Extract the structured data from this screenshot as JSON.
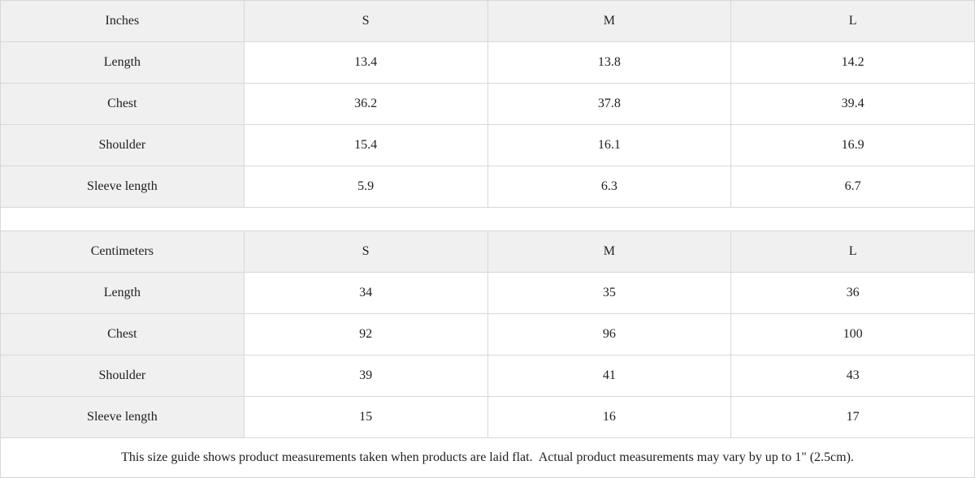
{
  "colors": {
    "header_bg": "#f0f0f0",
    "label_bg": "#f0f0f0",
    "cell_bg": "#ffffff",
    "border": "#d8d8d8",
    "text": "#1f1f1f"
  },
  "size_guide": {
    "tables": [
      {
        "unit_label": "Inches",
        "size_headers": [
          "S",
          "M",
          "L"
        ],
        "rows": [
          {
            "label": "Length",
            "values": [
              "13.4",
              "13.8",
              "14.2"
            ]
          },
          {
            "label": "Chest",
            "values": [
              "36.2",
              "37.8",
              "39.4"
            ]
          },
          {
            "label": "Shoulder",
            "values": [
              "15.4",
              "16.1",
              "16.9"
            ]
          },
          {
            "label": "Sleeve length",
            "values": [
              "5.9",
              "6.3",
              "6.7"
            ]
          }
        ]
      },
      {
        "unit_label": "Centimeters",
        "size_headers": [
          "S",
          "M",
          "L"
        ],
        "rows": [
          {
            "label": "Length",
            "values": [
              "34",
              "35",
              "36"
            ]
          },
          {
            "label": "Chest",
            "values": [
              "92",
              "96",
              "100"
            ]
          },
          {
            "label": "Shoulder",
            "values": [
              "39",
              "41",
              "43"
            ]
          },
          {
            "label": "Sleeve length",
            "values": [
              "15",
              "16",
              "17"
            ]
          }
        ]
      }
    ],
    "footnote": "This size guide shows product measurements taken when products are laid flat.  Actual product measurements may vary by up to 1\" (2.5cm)."
  }
}
